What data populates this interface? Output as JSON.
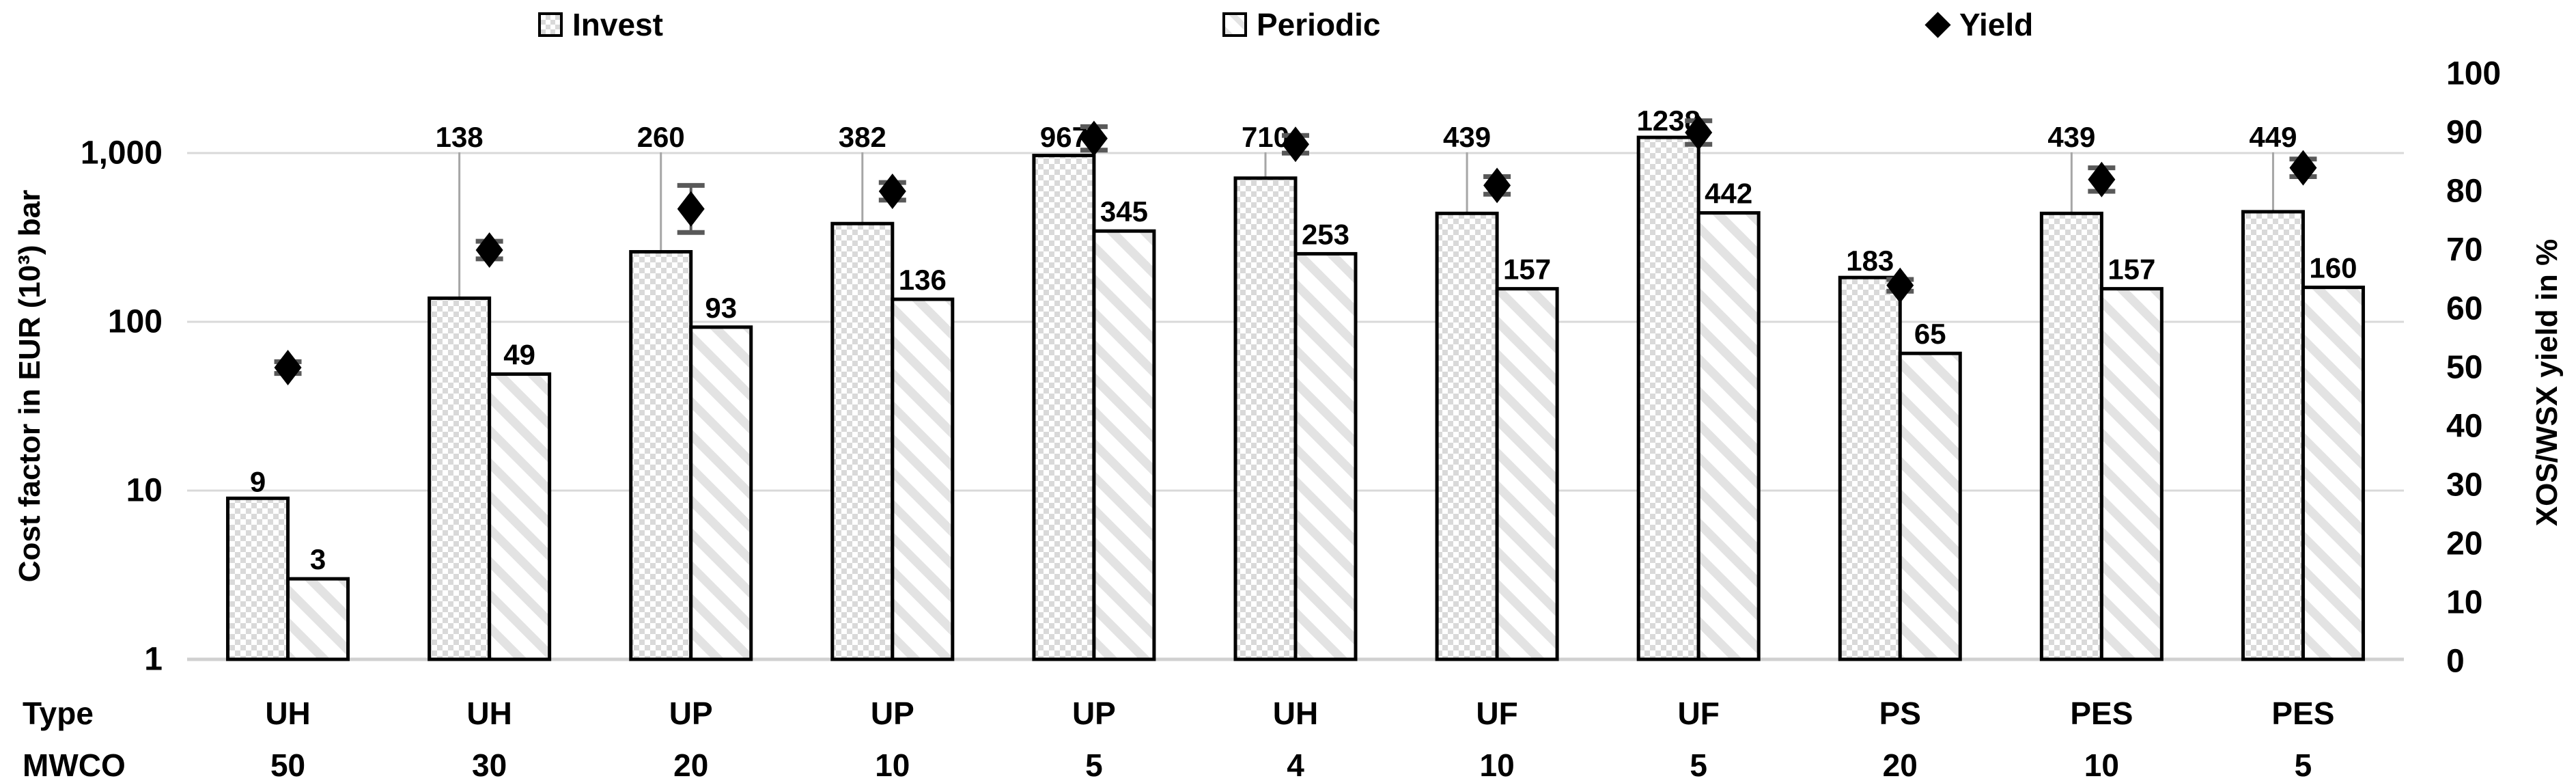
{
  "chart_data": {
    "type": "bar",
    "legend_position": "top",
    "grid": true,
    "x_rows": {
      "type_label": "Type",
      "mwco_label": "MWCO"
    },
    "categories_type": [
      "UH",
      "UH",
      "UP",
      "UP",
      "UP",
      "UH",
      "UF",
      "UF",
      "PS",
      "PES",
      "PES"
    ],
    "categories_mwco": [
      "50",
      "30",
      "20",
      "10",
      "5",
      "4",
      "10",
      "5",
      "20",
      "10",
      "5"
    ],
    "left_axis": {
      "title": "Cost factor in EUR (10³) bar",
      "scale": "log",
      "ticks": [
        1000,
        100,
        10,
        1
      ],
      "tick_labels": [
        "1,000",
        "100",
        "10",
        "1"
      ]
    },
    "right_axis": {
      "title": "XOS/WSX yield in %",
      "min": 0,
      "max": 100,
      "step": 10
    },
    "series": [
      {
        "name": "Invest",
        "axis": "left",
        "marker": "dotted-bar",
        "values": [
          9,
          138,
          260,
          382,
          967,
          710,
          439,
          1238,
          183,
          439,
          449
        ],
        "label_high": [
          false,
          true,
          true,
          true,
          true,
          true,
          true,
          true,
          false,
          true,
          true
        ]
      },
      {
        "name": "Periodic",
        "axis": "left",
        "marker": "striped-bar",
        "values": [
          3,
          49,
          93,
          136,
          345,
          253,
          157,
          442,
          65,
          157,
          160
        ]
      },
      {
        "name": "Yield",
        "axis": "right",
        "marker": "diamond",
        "values": [
          50,
          70,
          77,
          80,
          89,
          88,
          81,
          90,
          64,
          82,
          84
        ],
        "errors": [
          1,
          1.5,
          4,
          1.5,
          2,
          1.5,
          1.5,
          2,
          1,
          2,
          1.5
        ]
      }
    ],
    "colors": {
      "bar_border": "#000000",
      "invest_pattern": "#d9d9d9",
      "periodic_stripe": "#e3e3e3",
      "gridline": "#d9d9d9",
      "baseline": "#d0d0d0",
      "yield_marker": "#000000",
      "error_bar": "#595959",
      "leader_line": "#a6a6a6",
      "text": "#000000"
    }
  }
}
